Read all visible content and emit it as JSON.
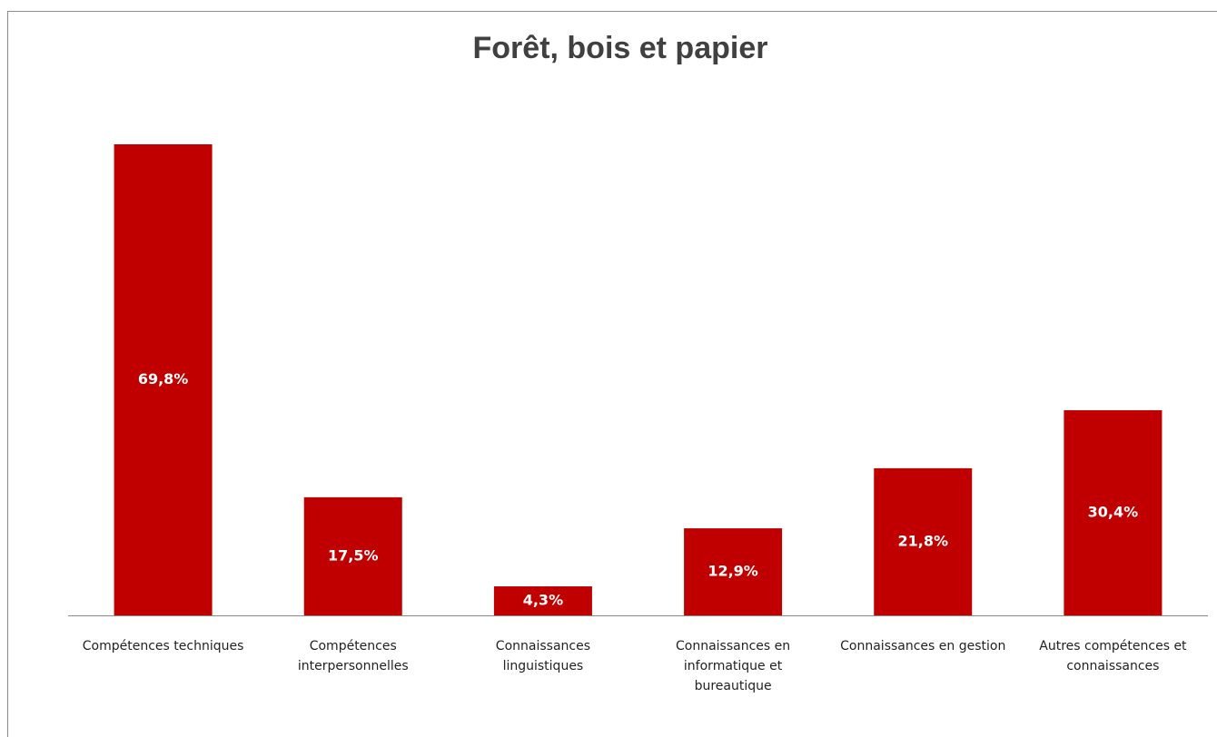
{
  "chart_data": {
    "type": "bar",
    "title": "Forêt, bois et papier",
    "categories": [
      "Compétences techniques",
      "Compétences interpersonnelles",
      "Connaissances linguistiques",
      "Connaissances en informatique et bureautique",
      "Connaissances en gestion",
      "Autres compétences et connaissances"
    ],
    "values": [
      69.8,
      17.5,
      4.3,
      12.9,
      21.8,
      30.4
    ],
    "value_labels": [
      "69,8%",
      "17,5%",
      "4,3%",
      "12,9%",
      "21,8%",
      "30,4%"
    ],
    "color": "#c00000"
  }
}
